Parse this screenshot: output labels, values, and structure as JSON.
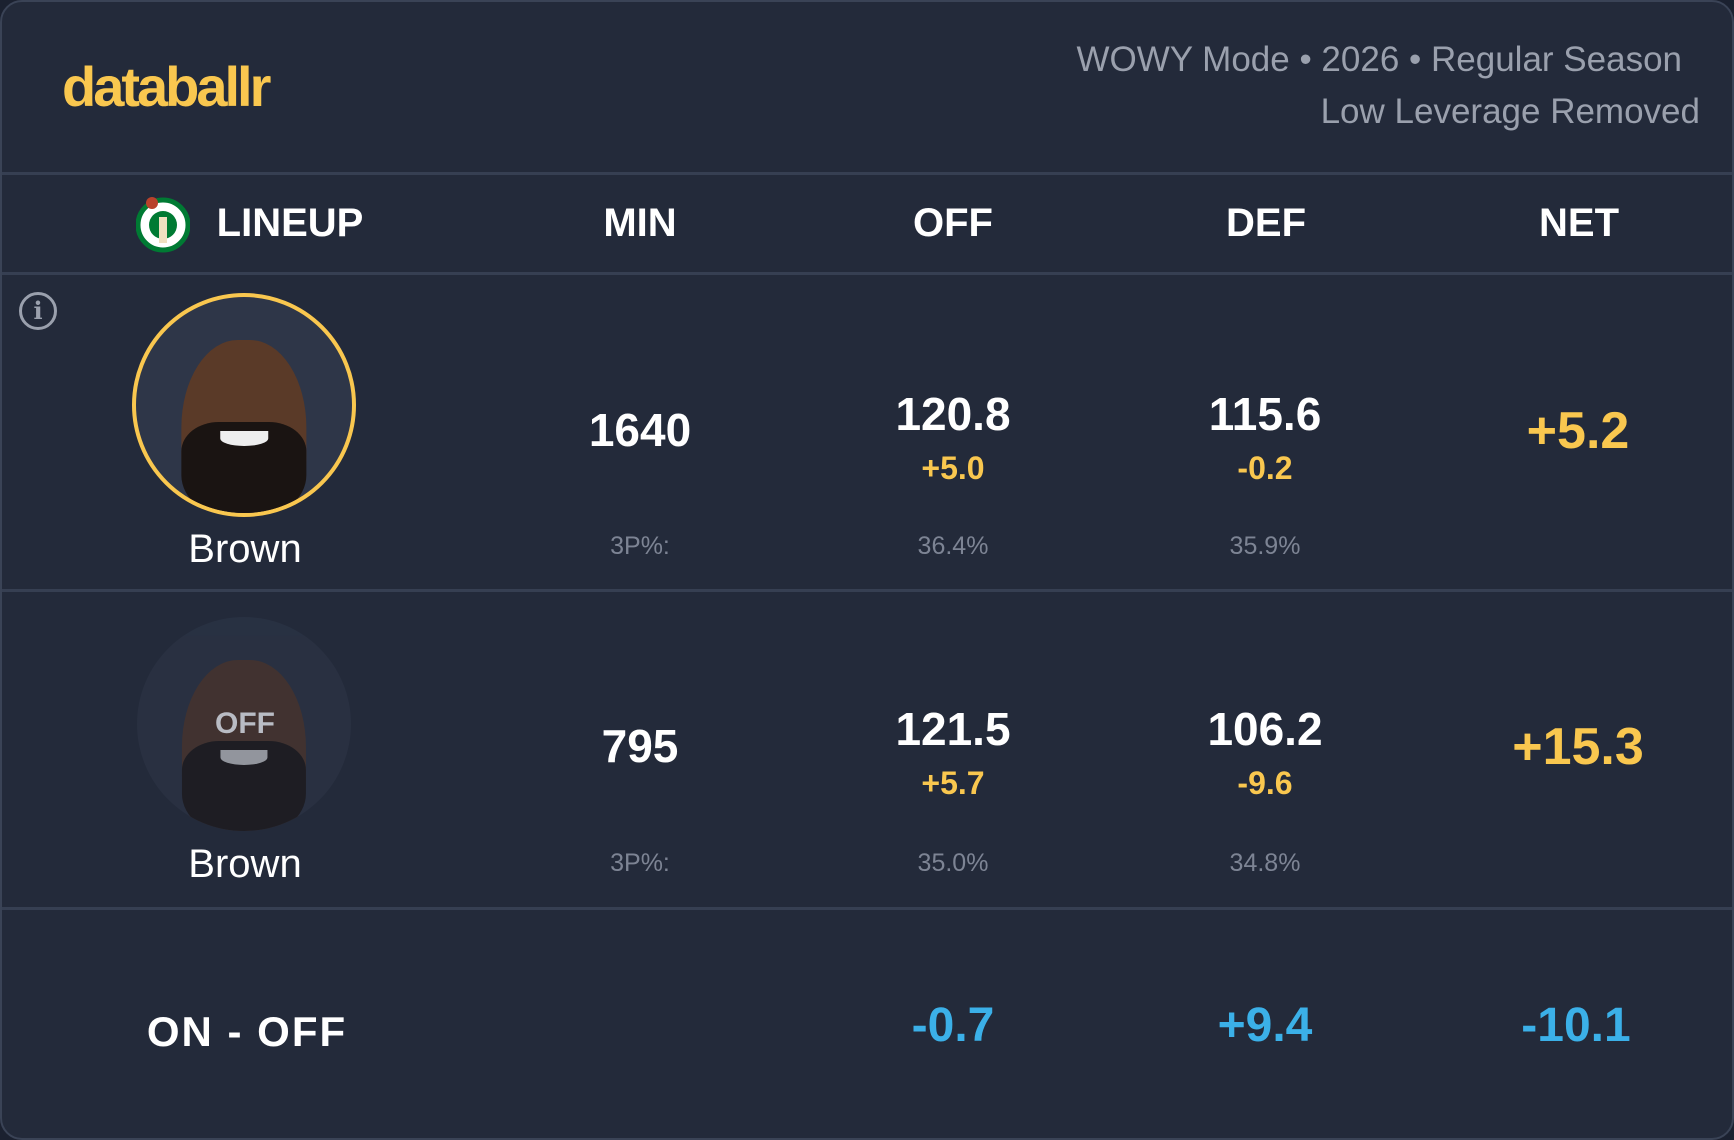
{
  "brand": "databallr",
  "header": {
    "line1": "WOWY Mode • 2026 • Regular Season",
    "line2": "Low Leverage Removed"
  },
  "columns": {
    "lineup": "LINEUP",
    "min": "MIN",
    "off": "OFF",
    "def": "DEF",
    "net": "NET"
  },
  "colors": {
    "accent": "#f9c74f",
    "diff": "#3bb0e8",
    "background": "#232a3a"
  },
  "rows": [
    {
      "player": "Brown",
      "state": "on",
      "min": "1640",
      "off": "120.8",
      "off_delta": "+5.0",
      "def": "115.6",
      "def_delta": "-0.2",
      "net": "+5.2",
      "tp_label": "3P%:",
      "off_3p": "36.4%",
      "def_3p": "35.9%"
    },
    {
      "player": "Brown",
      "state": "off",
      "off_badge": "OFF",
      "min": "795",
      "off": "121.5",
      "off_delta": "+5.7",
      "def": "106.2",
      "def_delta": "-9.6",
      "net": "+15.3",
      "tp_label": "3P%:",
      "off_3p": "35.0%",
      "def_3p": "34.8%"
    }
  ],
  "diff": {
    "label": "ON - OFF",
    "off": "-0.7",
    "def": "+9.4",
    "net": "-10.1"
  },
  "icons": {
    "info": "info-icon",
    "team": "celtics-logo"
  }
}
